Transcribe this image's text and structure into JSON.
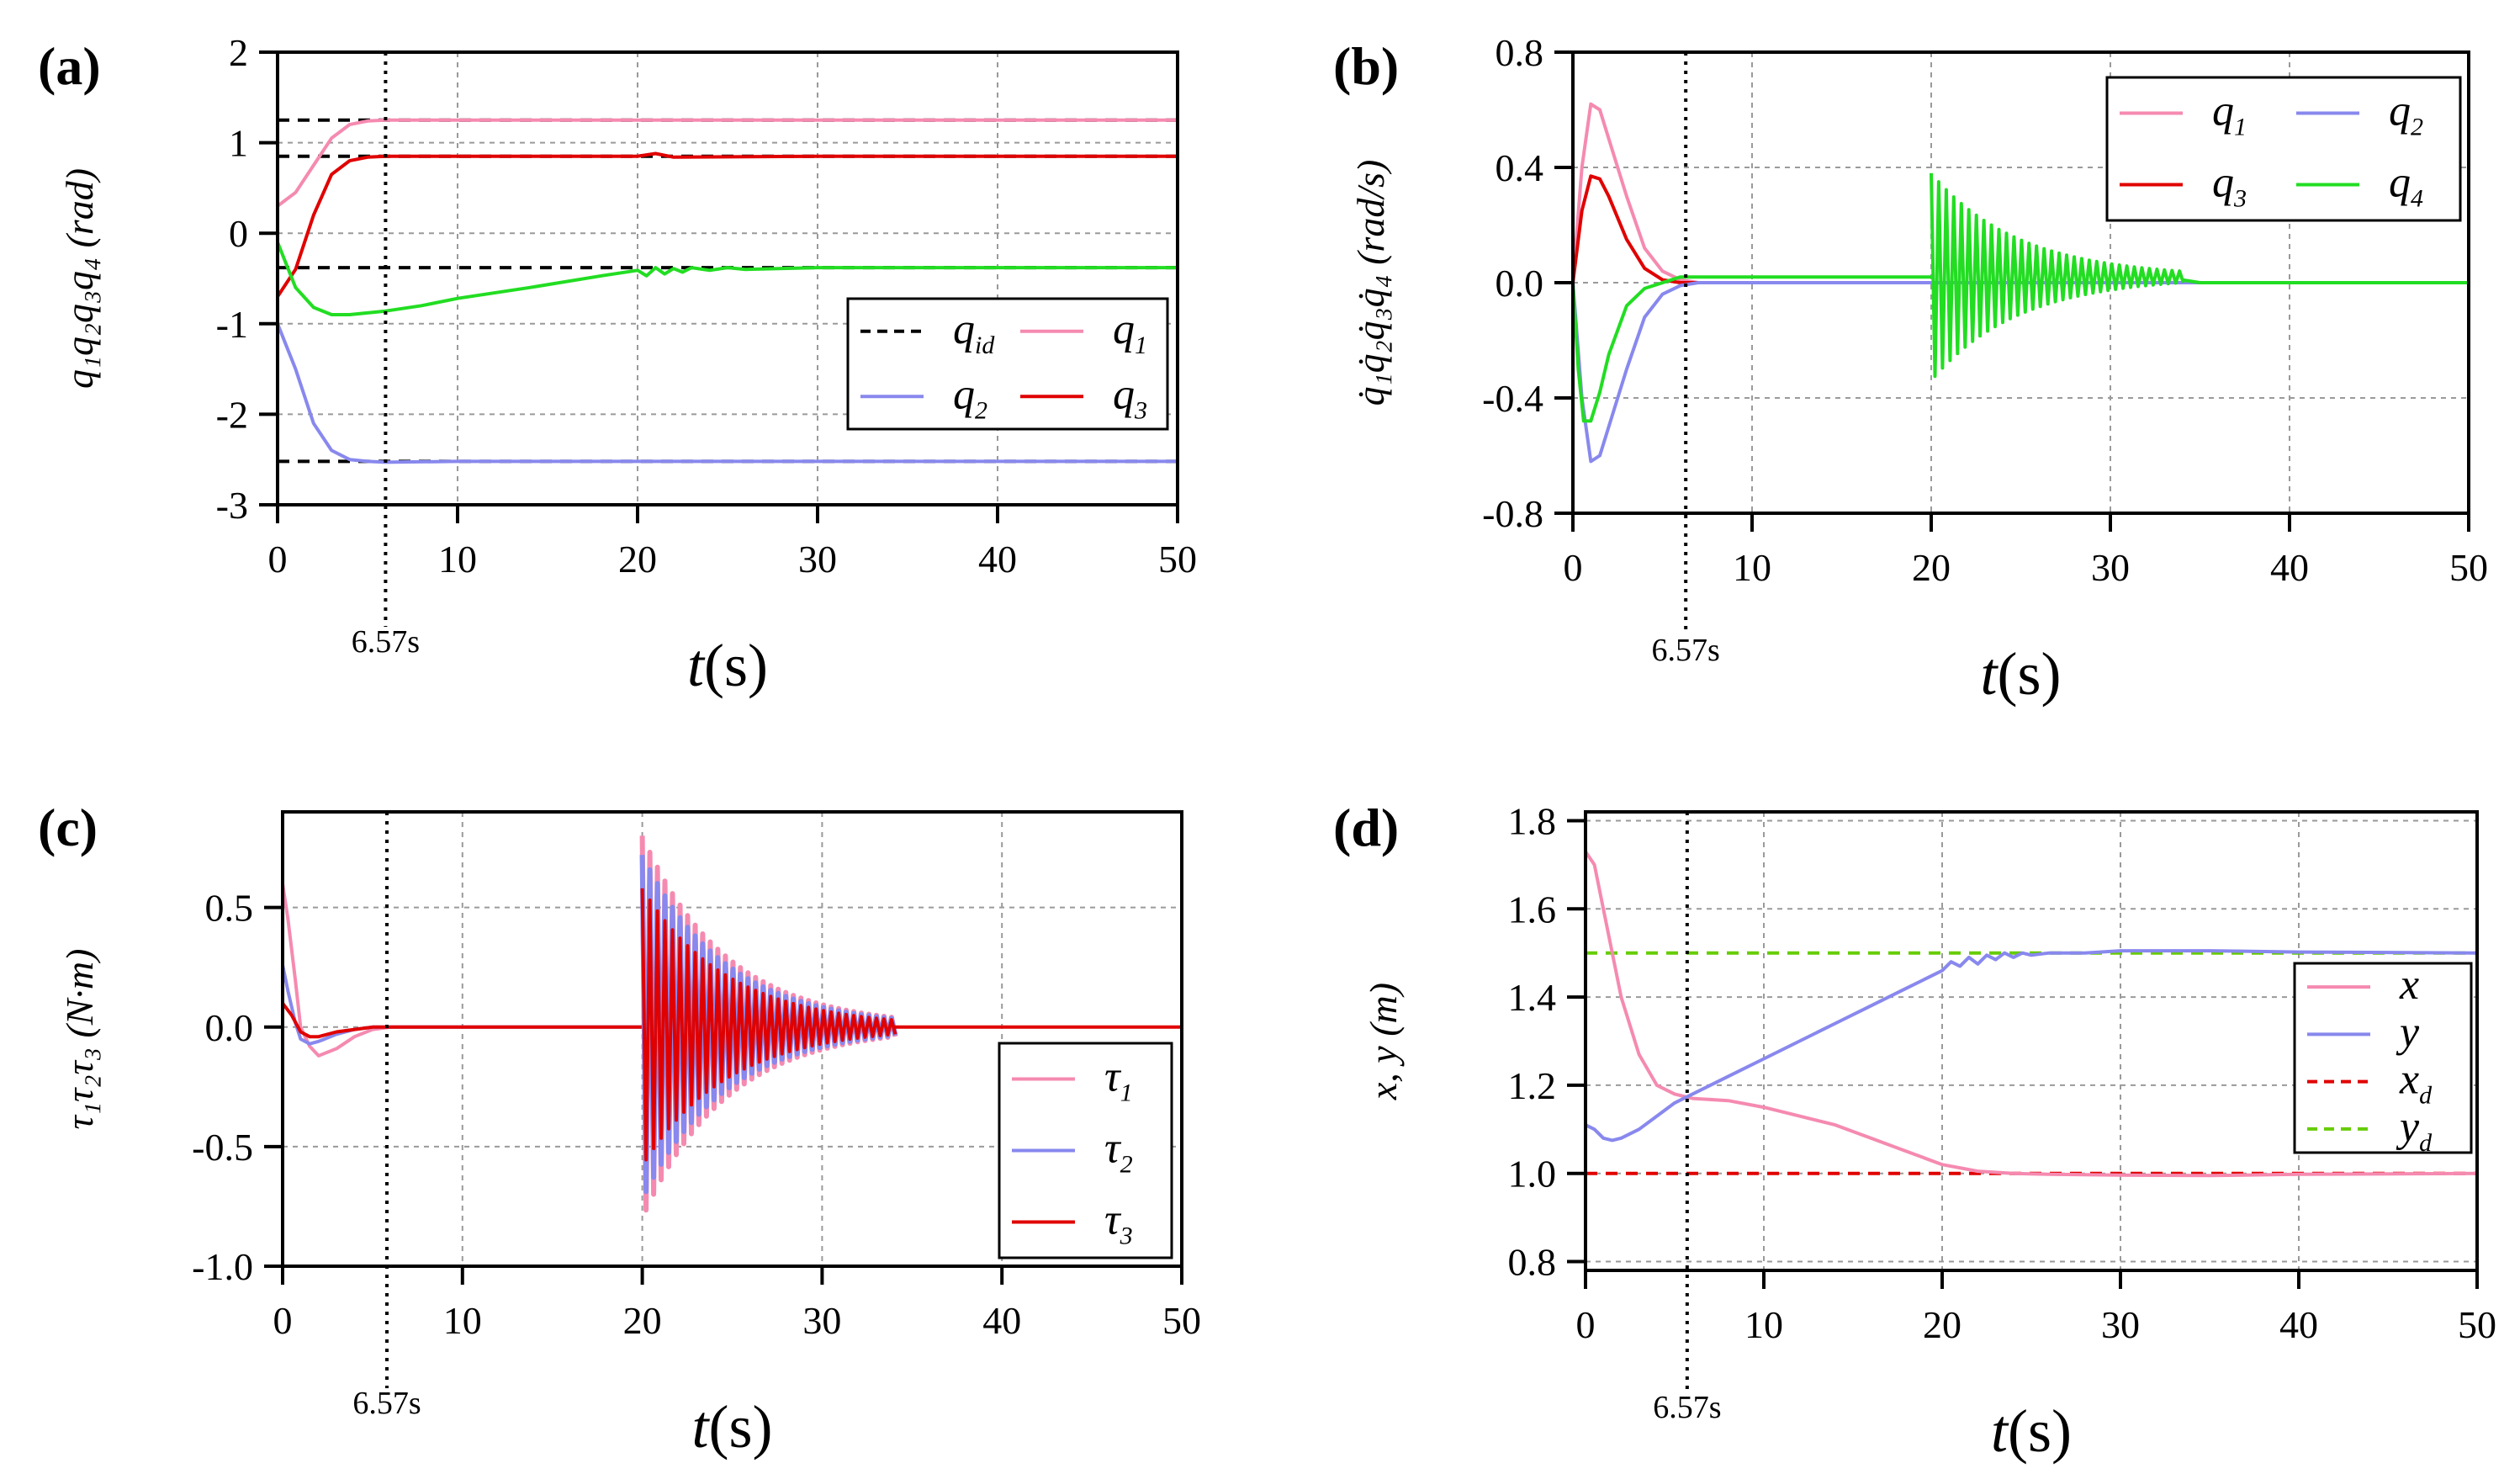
{
  "chart_data": [
    {
      "id": "a",
      "type": "line",
      "panel_label": "(a)",
      "ylabel": "q₁q₂q₃q₄ (rad)",
      "xlabel_main": "t",
      "xlabel_unit": "(s)",
      "xlim": [
        0,
        50
      ],
      "ylim": [
        -3,
        2
      ],
      "xticks": [
        0,
        10,
        20,
        30,
        40,
        50
      ],
      "yticks": [
        -3,
        -2,
        -1,
        0,
        1,
        2
      ],
      "ytick_labels": [
        "-3",
        "-2",
        "-1",
        "0",
        "1",
        "2"
      ],
      "vline": {
        "x": 6,
        "label": "6.57s"
      },
      "legend": [
        {
          "text": "q",
          "sub": "id",
          "color": "#000000",
          "dash": true
        },
        {
          "text": "q",
          "sub": "1",
          "color": "#f58ab0",
          "dash": false
        },
        {
          "text": "q",
          "sub": "2",
          "color": "#8888ee",
          "dash": false
        },
        {
          "text": "q",
          "sub": "3",
          "color": "#e00000",
          "dash": false
        }
      ],
      "series": [
        {
          "color": "#000000",
          "dash": true,
          "x": [
            0,
            50
          ],
          "y": [
            1.25,
            1.25
          ]
        },
        {
          "color": "#000000",
          "dash": true,
          "x": [
            0,
            50
          ],
          "y": [
            0.85,
            0.85
          ]
        },
        {
          "color": "#000000",
          "dash": true,
          "x": [
            0,
            50
          ],
          "y": [
            -0.38,
            -0.38
          ]
        },
        {
          "color": "#000000",
          "dash": true,
          "x": [
            0,
            50
          ],
          "y": [
            -2.52,
            -2.52
          ]
        },
        {
          "color": "#f58ab0",
          "x": [
            0,
            1,
            2,
            3,
            4,
            5,
            6,
            10,
            20,
            30,
            40,
            50
          ],
          "y": [
            0.3,
            0.45,
            0.75,
            1.05,
            1.2,
            1.24,
            1.25,
            1.25,
            1.25,
            1.25,
            1.25,
            1.25
          ]
        },
        {
          "color": "#e00000",
          "x": [
            0,
            1,
            2,
            3,
            4,
            5,
            6,
            10,
            20,
            21,
            22,
            30,
            40,
            50
          ],
          "y": [
            -0.7,
            -0.4,
            0.2,
            0.65,
            0.8,
            0.84,
            0.85,
            0.85,
            0.85,
            0.88,
            0.84,
            0.85,
            0.85,
            0.85
          ]
        },
        {
          "color": "#8888ee",
          "x": [
            0,
            1,
            2,
            3,
            4,
            5,
            6,
            10,
            20,
            30,
            40,
            50
          ],
          "y": [
            -1.0,
            -1.5,
            -2.1,
            -2.4,
            -2.5,
            -2.52,
            -2.53,
            -2.52,
            -2.52,
            -2.52,
            -2.52,
            -2.52
          ]
        },
        {
          "color": "#22dd22",
          "x": [
            0,
            0.5,
            1,
            2,
            3,
            4,
            6,
            8,
            10,
            14,
            18,
            20,
            20.5,
            21,
            21.5,
            22,
            22.5,
            23,
            24,
            25,
            26,
            30,
            40,
            50
          ],
          "y": [
            -0.1,
            -0.35,
            -0.6,
            -0.82,
            -0.9,
            -0.9,
            -0.86,
            -0.8,
            -0.72,
            -0.6,
            -0.47,
            -0.41,
            -0.47,
            -0.38,
            -0.45,
            -0.39,
            -0.43,
            -0.38,
            -0.41,
            -0.38,
            -0.4,
            -0.38,
            -0.38,
            -0.38
          ]
        }
      ]
    },
    {
      "id": "b",
      "type": "line",
      "panel_label": "(b)",
      "ylabel": "q̇₁q̇₂q̇₃q̇₄ (rad/s)",
      "xlabel_main": "t",
      "xlabel_unit": "(s)",
      "xlim": [
        0,
        50
      ],
      "ylim": [
        -0.8,
        0.8
      ],
      "xticks": [
        0,
        10,
        20,
        30,
        40,
        50
      ],
      "yticks": [
        -0.8,
        -0.4,
        0.0,
        0.4,
        0.8
      ],
      "ytick_labels": [
        "-0.8",
        "-0.4",
        "0.0",
        "0.4",
        "0.8"
      ],
      "vline": {
        "x": 6.3,
        "label": "6.57s"
      },
      "legend": [
        {
          "text": "q",
          "sub": "1",
          "color": "#f58ab0",
          "dash": false
        },
        {
          "text": "q",
          "sub": "2",
          "color": "#8888ee",
          "dash": false
        },
        {
          "text": "q",
          "sub": "3",
          "color": "#e00000",
          "dash": false
        },
        {
          "text": "q",
          "sub": "4",
          "color": "#22dd22",
          "dash": false
        }
      ],
      "series": [
        {
          "color": "#f58ab0",
          "x": [
            0,
            0.5,
            1,
            1.5,
            2,
            3,
            4,
            5,
            6,
            7,
            10,
            20,
            50
          ],
          "y": [
            0,
            0.4,
            0.62,
            0.6,
            0.5,
            0.3,
            0.12,
            0.04,
            0.01,
            0,
            0,
            0,
            0
          ]
        },
        {
          "color": "#e00000",
          "x": [
            0,
            0.5,
            1,
            1.5,
            2,
            3,
            4,
            5,
            6,
            7,
            10,
            20,
            50
          ],
          "y": [
            0,
            0.25,
            0.37,
            0.36,
            0.3,
            0.15,
            0.05,
            0.01,
            0,
            0,
            0,
            0,
            0
          ]
        },
        {
          "color": "#8888ee",
          "x": [
            0,
            0.5,
            1,
            1.5,
            2,
            3,
            4,
            5,
            6,
            7,
            10,
            20,
            50
          ],
          "y": [
            0,
            -0.4,
            -0.62,
            -0.6,
            -0.5,
            -0.3,
            -0.12,
            -0.04,
            -0.01,
            0,
            0,
            0,
            0
          ]
        },
        {
          "color": "#22dd22",
          "x": [
            0,
            0.3,
            0.6,
            1,
            1.5,
            2,
            3,
            4,
            6,
            10,
            20
          ],
          "y": [
            0,
            -0.3,
            -0.48,
            -0.48,
            -0.38,
            -0.25,
            -0.08,
            -0.02,
            0.02,
            0.02,
            0.02
          ]
        },
        {
          "color": "#22dd22",
          "generator": "decay",
          "t0": 20,
          "t1": 34,
          "amp0": 0.36,
          "amp1": 0.02,
          "period": 0.42,
          "offset": 0.02
        },
        {
          "color": "#22dd22",
          "x": [
            34,
            35,
            40,
            50
          ],
          "y": [
            0.01,
            0,
            0,
            0
          ]
        }
      ]
    },
    {
      "id": "c",
      "type": "line",
      "panel_label": "(c)",
      "ylabel": "τ₁τ₂τ₃ (N·m)",
      "xlabel_main": "t",
      "xlabel_unit": "(s)",
      "xlim": [
        0,
        50
      ],
      "ylim": [
        -1.0,
        0.9
      ],
      "xticks": [
        0,
        10,
        20,
        30,
        40,
        50
      ],
      "yticks": [
        -1.0,
        -0.5,
        0.0,
        0.5
      ],
      "ytick_labels": [
        "-1.0",
        "-0.5",
        "0.0",
        "0.5"
      ],
      "vline": {
        "x": 5.8,
        "label": "6.57s"
      },
      "legend": [
        {
          "text": "τ",
          "sub": "1",
          "color": "#f58ab0",
          "dash": false
        },
        {
          "text": "τ",
          "sub": "2",
          "color": "#8888ee",
          "dash": false
        },
        {
          "text": "τ",
          "sub": "3",
          "color": "#e00000",
          "dash": false
        }
      ],
      "series": [
        {
          "color": "#f58ab0",
          "x": [
            0,
            0.3,
            0.7,
            1,
            1.5,
            2,
            3,
            4,
            5,
            6,
            10,
            20
          ],
          "y": [
            0.6,
            0.45,
            0.2,
            0.0,
            -0.08,
            -0.12,
            -0.09,
            -0.04,
            -0.01,
            0,
            0,
            0
          ]
        },
        {
          "color": "#8888ee",
          "x": [
            0,
            0.3,
            0.7,
            1,
            1.5,
            2,
            3,
            4,
            5,
            6,
            10,
            20
          ],
          "y": [
            0.26,
            0.15,
            0.02,
            -0.05,
            -0.07,
            -0.06,
            -0.03,
            -0.01,
            0,
            0,
            0,
            0
          ]
        },
        {
          "color": "#e00000",
          "x": [
            0,
            0.5,
            1,
            1.5,
            2,
            3,
            4,
            5,
            6,
            10,
            20
          ],
          "y": [
            0.1,
            0.05,
            -0.02,
            -0.04,
            -0.04,
            -0.02,
            -0.01,
            0,
            0,
            0,
            0
          ]
        },
        {
          "color": "#f58ab0",
          "generator": "decay",
          "t0": 20,
          "t1": 34,
          "amp0": 0.8,
          "amp1": 0.04,
          "period": 0.42,
          "offset": 0,
          "width": 6
        },
        {
          "color": "#8888ee",
          "generator": "decay",
          "t0": 20,
          "t1": 34,
          "amp0": 0.72,
          "amp1": 0.035,
          "period": 0.42,
          "offset": 0,
          "width": 6
        },
        {
          "color": "#e00000",
          "generator": "decay",
          "t0": 20,
          "t1": 34,
          "amp0": 0.58,
          "amp1": 0.03,
          "period": 0.42,
          "offset": 0,
          "width": 4
        },
        {
          "color": "#e00000",
          "x": [
            34,
            35,
            40,
            50
          ],
          "y": [
            0,
            0,
            0,
            0
          ]
        }
      ]
    },
    {
      "id": "d",
      "type": "line",
      "panel_label": "(d)",
      "ylabel": "x, y (m)",
      "xlabel_main": "t",
      "xlabel_unit": "(s)",
      "xlim": [
        0,
        50
      ],
      "ylim": [
        0.78,
        1.82
      ],
      "xticks": [
        0,
        10,
        20,
        30,
        40,
        50
      ],
      "yticks": [
        0.8,
        1.0,
        1.2,
        1.4,
        1.6,
        1.8
      ],
      "ytick_labels": [
        "0.8",
        "1.0",
        "1.2",
        "1.4",
        "1.6",
        "1.8"
      ],
      "vline": {
        "x": 5.7,
        "label": "6.57s"
      },
      "legend": [
        {
          "text": "x",
          "sub": "",
          "color": "#f58ab0",
          "dash": false
        },
        {
          "text": "y",
          "sub": "",
          "color": "#8888ee",
          "dash": false
        },
        {
          "text": "x",
          "sub": "d",
          "color": "#e00000",
          "dash": true
        },
        {
          "text": "y",
          "sub": "d",
          "color": "#66cc00",
          "dash": true
        }
      ],
      "series": [
        {
          "color": "#e00000",
          "dash": true,
          "x": [
            0,
            50
          ],
          "y": [
            1.0,
            1.0
          ]
        },
        {
          "color": "#66cc00",
          "dash": true,
          "x": [
            0,
            50
          ],
          "y": [
            1.5,
            1.5
          ]
        },
        {
          "color": "#f58ab0",
          "x": [
            0,
            0.5,
            1,
            2,
            3,
            4,
            5,
            6,
            8,
            10,
            12,
            14,
            16,
            18,
            20,
            22,
            24,
            26,
            30,
            35,
            40,
            50
          ],
          "y": [
            1.73,
            1.7,
            1.6,
            1.4,
            1.27,
            1.2,
            1.18,
            1.17,
            1.165,
            1.15,
            1.13,
            1.11,
            1.08,
            1.05,
            1.02,
            1.005,
            1.0,
            0.998,
            0.996,
            0.995,
            0.998,
            1.0
          ]
        },
        {
          "color": "#8888ee",
          "x": [
            0,
            0.5,
            1,
            1.5,
            2,
            3,
            4,
            5,
            6,
            8,
            10,
            12,
            14,
            16,
            18,
            20,
            20.5,
            21,
            21.5,
            22,
            22.5,
            23,
            23.5,
            24,
            24.5,
            25,
            26,
            28,
            30,
            35,
            40,
            50
          ],
          "y": [
            1.11,
            1.1,
            1.08,
            1.075,
            1.08,
            1.1,
            1.13,
            1.16,
            1.18,
            1.22,
            1.26,
            1.3,
            1.34,
            1.38,
            1.42,
            1.46,
            1.48,
            1.47,
            1.49,
            1.475,
            1.495,
            1.485,
            1.5,
            1.49,
            1.5,
            1.495,
            1.5,
            1.5,
            1.505,
            1.505,
            1.502,
            1.5
          ]
        }
      ]
    }
  ]
}
